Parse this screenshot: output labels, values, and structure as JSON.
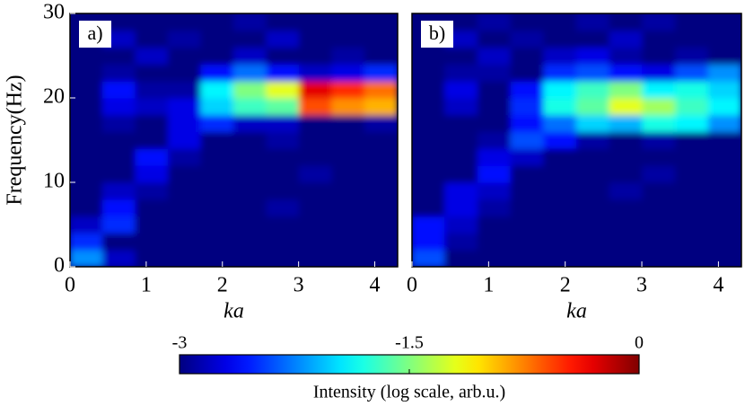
{
  "chart_data": [
    {
      "type": "heatmap",
      "label": "a)",
      "xlabel": "ka",
      "ylabel": "Frequency(Hz)",
      "colormap": "jet",
      "xlim": [
        0,
        4.3
      ],
      "ylim": [
        0,
        30
      ],
      "xticks": [
        0,
        1,
        2,
        3,
        4
      ],
      "yticks": [
        0,
        10,
        20,
        30
      ],
      "x": [
        0.215,
        0.645,
        1.075,
        1.505,
        1.935,
        2.365,
        2.795,
        3.225,
        3.655,
        4.085
      ],
      "y": [
        1,
        3,
        5,
        7,
        9,
        11,
        13,
        15,
        17,
        19,
        21,
        23,
        25,
        27,
        29
      ],
      "z": [
        [
          -2.2,
          -2.8,
          -3,
          -3,
          -3,
          -3,
          -3,
          -3,
          -3,
          -3
        ],
        [
          -2.5,
          -3,
          -3,
          -3,
          -3,
          -3,
          -3,
          -3,
          -3,
          -3
        ],
        [
          -2.8,
          -2.5,
          -3,
          -3,
          -3,
          -3,
          -3,
          -3,
          -3,
          -3
        ],
        [
          -3,
          -2.6,
          -3,
          -3,
          -3,
          -3,
          -2.9,
          -3,
          -3,
          -3
        ],
        [
          -3,
          -2.8,
          -2.9,
          -3,
          -3,
          -3,
          -3,
          -3,
          -3,
          -3
        ],
        [
          -3,
          -3,
          -2.7,
          -3,
          -3,
          -3,
          -3,
          -2.9,
          -3,
          -3
        ],
        [
          -3,
          -3,
          -2.6,
          -2.9,
          -3,
          -3,
          -3,
          -3,
          -3,
          -3
        ],
        [
          -3,
          -3,
          -3,
          -2.7,
          -3,
          -3,
          -2.9,
          -3,
          -3,
          -3
        ],
        [
          -3,
          -2.9,
          -3,
          -2.7,
          -2.5,
          -2.8,
          -2.8,
          -3,
          -3,
          -2.9
        ],
        [
          -3,
          -2.7,
          -2.8,
          -2.7,
          -2.0,
          -1.7,
          -1.6,
          -0.6,
          -0.8,
          -0.9
        ],
        [
          -3,
          -2.6,
          -2.9,
          -2.9,
          -1.9,
          -1.5,
          -1.2,
          -0.3,
          -0.5,
          -0.7
        ],
        [
          -3,
          -2.9,
          -3,
          -3,
          -2.6,
          -2.3,
          -2.6,
          -2.8,
          -2.7,
          -2.5
        ],
        [
          -3,
          -3,
          -2.8,
          -3,
          -3,
          -2.8,
          -3,
          -3,
          -2.9,
          -3
        ],
        [
          -3,
          -2.8,
          -3,
          -2.9,
          -3,
          -3,
          -2.8,
          -3,
          -3,
          -3
        ],
        [
          -3,
          -3,
          -3,
          -3,
          -3,
          -2.9,
          -3,
          -3,
          -3,
          -3
        ]
      ]
    },
    {
      "type": "heatmap",
      "label": "b)",
      "xlabel": "ka",
      "colormap": "jet",
      "xlim": [
        0,
        4.3
      ],
      "ylim": [
        0,
        30
      ],
      "xticks": [
        0,
        1,
        2,
        3,
        4
      ],
      "x": [
        0.215,
        0.645,
        1.075,
        1.505,
        1.935,
        2.365,
        2.795,
        3.225,
        3.655,
        4.085
      ],
      "y": [
        1,
        3,
        5,
        7,
        9,
        11,
        13,
        15,
        17,
        19,
        21,
        23,
        25,
        27,
        29
      ],
      "z": [
        [
          -2.4,
          -3,
          -3,
          -3,
          -3,
          -3,
          -3,
          -3,
          -3,
          -3
        ],
        [
          -2.6,
          -2.9,
          -3,
          -3,
          -3,
          -3,
          -3,
          -3,
          -3,
          -3
        ],
        [
          -2.6,
          -2.8,
          -3,
          -3,
          -3,
          -3,
          -3,
          -3,
          -3,
          -3
        ],
        [
          -3,
          -2.7,
          -2.9,
          -3,
          -3,
          -3,
          -3,
          -3,
          -3,
          -3
        ],
        [
          -3,
          -2.7,
          -2.8,
          -3,
          -3,
          -3,
          -2.9,
          -3,
          -3,
          -3
        ],
        [
          -3,
          -3,
          -2.6,
          -3,
          -3,
          -3,
          -3,
          -2.9,
          -3,
          -3
        ],
        [
          -3,
          -3,
          -2.7,
          -2.8,
          -3,
          -3,
          -3,
          -3,
          -3,
          -3
        ],
        [
          -3,
          -3,
          -2.9,
          -2.4,
          -2.6,
          -2.9,
          -3,
          -2.9,
          -3,
          -3
        ],
        [
          -3,
          -3,
          -3,
          -2.6,
          -2.3,
          -2.0,
          -2.1,
          -1.8,
          -1.9,
          -2.2
        ],
        [
          -3,
          -2.8,
          -3,
          -2.5,
          -1.8,
          -1.6,
          -1.2,
          -1.4,
          -1.7,
          -1.9
        ],
        [
          -3,
          -2.7,
          -3,
          -2.6,
          -1.9,
          -1.7,
          -1.5,
          -1.9,
          -1.8,
          -2.0
        ],
        [
          -3,
          -2.9,
          -2.9,
          -3,
          -2.5,
          -2.4,
          -2.6,
          -2.7,
          -2.4,
          -2.2
        ],
        [
          -3,
          -3,
          -2.8,
          -3,
          -2.8,
          -2.7,
          -2.9,
          -3,
          -2.9,
          -3
        ],
        [
          -3,
          -2.8,
          -3,
          -2.9,
          -3,
          -3,
          -2.8,
          -3,
          -3,
          -3
        ],
        [
          -3,
          -3,
          -2.9,
          -3,
          -3,
          -2.9,
          -3,
          -2.9,
          -3,
          -3
        ]
      ]
    }
  ],
  "colorbar": {
    "label": "Intensity (log scale, arb.u.)",
    "colormap": "jet",
    "lim": [
      -3,
      0
    ],
    "ticks": [
      -3,
      -1.5,
      0
    ]
  }
}
